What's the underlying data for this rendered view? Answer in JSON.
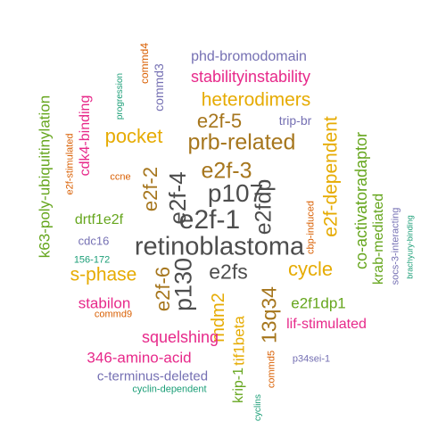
{
  "palette": {
    "gray": "#4d4d4d",
    "amber": "#e6ab02",
    "brown": "#a6761d",
    "pink": "#e7298a",
    "green": "#66a61e",
    "orange": "#d95f02",
    "purple": "#7570b3",
    "teal": "#1b9e77"
  },
  "words": [
    {
      "text": "retinoblastoma",
      "color": "gray"
    },
    {
      "text": "p107",
      "color": "gray"
    },
    {
      "text": "e2f-1",
      "color": "gray"
    },
    {
      "text": "e2fs",
      "color": "gray"
    },
    {
      "text": "e2f-4",
      "color": "gray"
    },
    {
      "text": "e2fdp",
      "color": "gray"
    },
    {
      "text": "p130",
      "color": "gray"
    },
    {
      "text": "prb-related",
      "color": "brown"
    },
    {
      "text": "e2f-3",
      "color": "brown"
    },
    {
      "text": "e2f-2",
      "color": "brown"
    },
    {
      "text": "e2f-6",
      "color": "brown"
    },
    {
      "text": "e2f-5",
      "color": "brown"
    },
    {
      "text": "13q34",
      "color": "brown"
    },
    {
      "text": "heterodimers",
      "color": "amber"
    },
    {
      "text": "pocket",
      "color": "amber"
    },
    {
      "text": "cycle",
      "color": "amber"
    },
    {
      "text": "e2f-dependent",
      "color": "amber"
    },
    {
      "text": "mdm2",
      "color": "amber"
    },
    {
      "text": "s-phase",
      "color": "amber"
    },
    {
      "text": "tif1beta",
      "color": "amber"
    },
    {
      "text": "k63-poly-ubiquitinylation",
      "color": "green"
    },
    {
      "text": "co-activatoradaptor",
      "color": "green"
    },
    {
      "text": "krab-mediated",
      "color": "green"
    },
    {
      "text": "drtf1e2f",
      "color": "green"
    },
    {
      "text": "e2f1dp1",
      "color": "green"
    },
    {
      "text": "krip-1",
      "color": "green"
    },
    {
      "text": "cdk4-binding",
      "color": "pink"
    },
    {
      "text": "stabilityinstability",
      "color": "pink"
    },
    {
      "text": "squelshing",
      "color": "pink"
    },
    {
      "text": "346-amino-acid",
      "color": "pink"
    },
    {
      "text": "lif-stimulated",
      "color": "pink"
    },
    {
      "text": "stabilon",
      "color": "pink"
    },
    {
      "text": "phd-bromodomain",
      "color": "purple"
    },
    {
      "text": "commd3",
      "color": "purple"
    },
    {
      "text": "trip-br",
      "color": "purple"
    },
    {
      "text": "c-terminus-deleted",
      "color": "purple"
    },
    {
      "text": "cdc16",
      "color": "purple"
    },
    {
      "text": "socs-3-interacting",
      "color": "purple"
    },
    {
      "text": "p34sei-1",
      "color": "purple"
    },
    {
      "text": "commd4",
      "color": "orange"
    },
    {
      "text": "e2f-stimulated",
      "color": "orange"
    },
    {
      "text": "ccne",
      "color": "orange"
    },
    {
      "text": "cbp-induced",
      "color": "orange"
    },
    {
      "text": "commd9",
      "color": "orange"
    },
    {
      "text": "commd5",
      "color": "orange"
    },
    {
      "text": "progression",
      "color": "teal"
    },
    {
      "text": "156-172",
      "color": "teal"
    },
    {
      "text": "brachyury-binding",
      "color": "teal"
    },
    {
      "text": "cyclin-dependent",
      "color": "teal"
    },
    {
      "text": "cyclins",
      "color": "teal"
    }
  ]
}
